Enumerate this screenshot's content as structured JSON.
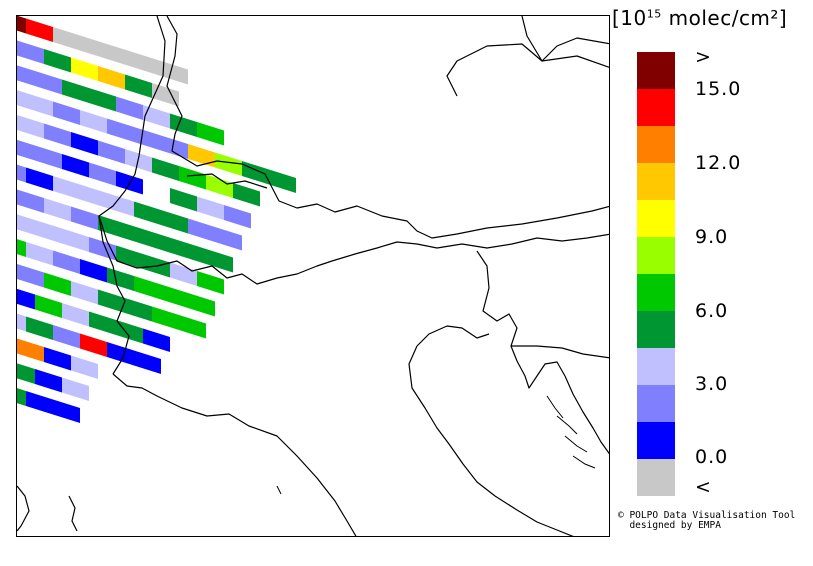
{
  "legend": {
    "unit_prefix": "[10",
    "unit_exp": "15",
    "unit_suffix": " molec/cm²]",
    "colors": [
      "#800000",
      "#ff0000",
      "#ff8000",
      "#ffc800",
      "#ffff00",
      "#99ff00",
      "#00c800",
      "#009632",
      "#c0c0ff",
      "#8080ff",
      "#0000ff",
      "#c8c8c8"
    ],
    "labels": [
      ">",
      "15.0",
      "12.0",
      "9.0",
      "6.0",
      "3.0",
      "0.0",
      "<"
    ]
  },
  "credit": {
    "line1": "© POLPO Data Visualisation Tool",
    "line2": "  designed by EMPA"
  },
  "swath_bins": [
    [
      0,
      1,
      11,
      11,
      11,
      11,
      11,
      11,
      11
    ],
    [
      9,
      9,
      7,
      4,
      3,
      7,
      11,
      11,
      11,
      11
    ],
    [
      9,
      9,
      9,
      7,
      7,
      9,
      8,
      7,
      6,
      11,
      11
    ],
    [
      9,
      8,
      8,
      9,
      8,
      9,
      9,
      9,
      3,
      5,
      7,
      7
    ],
    [
      9,
      10,
      8,
      9,
      10,
      9,
      8,
      7,
      6,
      5,
      7,
      11
    ],
    [
      9,
      8,
      9,
      9,
      10,
      9,
      10,
      11,
      7,
      8,
      9,
      11
    ],
    [
      9,
      8,
      9,
      10,
      8,
      8,
      8,
      7,
      7,
      9,
      9,
      11
    ],
    [
      9,
      9,
      8,
      9,
      8,
      9,
      7,
      7,
      7,
      7,
      7,
      11
    ],
    [
      9,
      9,
      9,
      8,
      8,
      8,
      9,
      7,
      7,
      8,
      6,
      11
    ],
    [
      9,
      9,
      9,
      6,
      8,
      9,
      10,
      7,
      6,
      6,
      6,
      11
    ],
    [
      9,
      8,
      9,
      3,
      9,
      6,
      8,
      7,
      7,
      6,
      6,
      11
    ],
    [
      9,
      9,
      9,
      10,
      10,
      6,
      8,
      7,
      7,
      10,
      11,
      11
    ],
    [
      9,
      9,
      9,
      8,
      8,
      7,
      9,
      1,
      10,
      10,
      11,
      11
    ],
    [
      9,
      9,
      3,
      8,
      5,
      2,
      10,
      8,
      11,
      11,
      11,
      11
    ],
    [
      9,
      9,
      5,
      5,
      7,
      7,
      10,
      8,
      11,
      11,
      11,
      11
    ],
    [
      9,
      9,
      5,
      5,
      7,
      7,
      10,
      10,
      11,
      11,
      11,
      11
    ]
  ]
}
